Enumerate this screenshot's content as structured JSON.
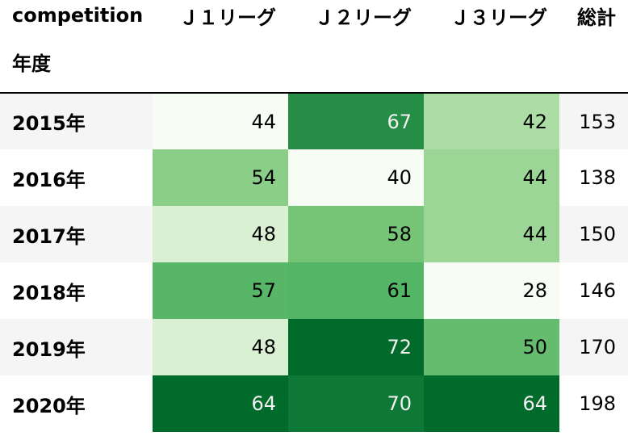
{
  "table": {
    "corner_label": "competition",
    "index_label": "年度",
    "columns": [
      "Ｊ１リーグ",
      "Ｊ２リーグ",
      "Ｊ３リーグ",
      "総計"
    ],
    "rows": [
      {
        "label": "2015年",
        "values": [
          44,
          67,
          42,
          153
        ]
      },
      {
        "label": "2016年",
        "values": [
          54,
          40,
          44,
          138
        ]
      },
      {
        "label": "2017年",
        "values": [
          48,
          58,
          44,
          150
        ]
      },
      {
        "label": "2018年",
        "values": [
          57,
          61,
          28,
          146
        ]
      },
      {
        "label": "2019年",
        "values": [
          48,
          72,
          50,
          170
        ]
      },
      {
        "label": "2020年",
        "values": [
          64,
          70,
          64,
          198
        ]
      }
    ]
  },
  "chart_data": {
    "type": "heatmap",
    "title": "",
    "xlabel": "competition",
    "ylabel": "年度",
    "x": [
      "Ｊ１リーグ",
      "Ｊ２リーグ",
      "Ｊ３リーグ"
    ],
    "y": [
      "2015年",
      "2016年",
      "2017年",
      "2018年",
      "2019年",
      "2020年"
    ],
    "values": [
      [
        44,
        67,
        42
      ],
      [
        54,
        40,
        44
      ],
      [
        48,
        58,
        44
      ],
      [
        57,
        61,
        28
      ],
      [
        48,
        72,
        50
      ],
      [
        64,
        70,
        64
      ]
    ],
    "totals_label": "総計",
    "totals": [
      153,
      138,
      150,
      146,
      170,
      198
    ],
    "colormap": "Greens",
    "color_scale_per_column": true,
    "color_low": "#f7fcf5",
    "color_high": "#1b4d23"
  }
}
